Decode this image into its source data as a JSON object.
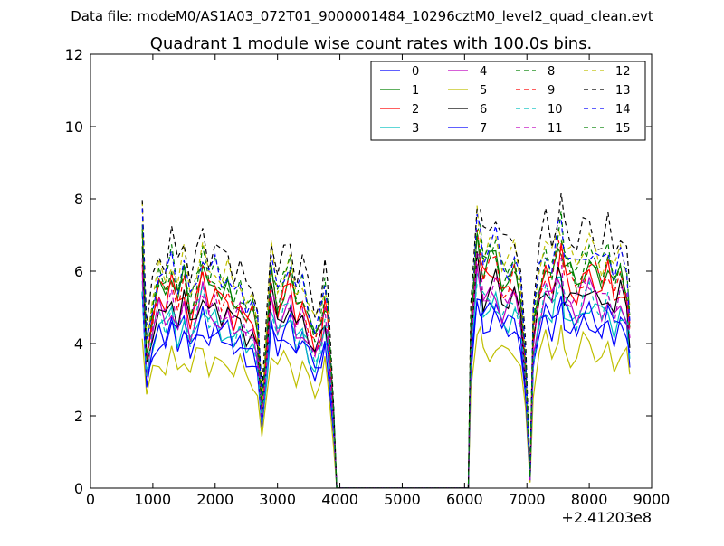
{
  "chart_data": {
    "type": "line",
    "suptitle": "Data file: modeM0/AS1A03_072T01_9000001484_10296cztM0_level2_quad_clean.evt",
    "title": "Quadrant 1 module wise count rates with 100.0s bins.",
    "xlabel": "",
    "ylabel": "",
    "x_offset_label": "+2.41203e8",
    "xlim": [
      0,
      9000
    ],
    "ylim": [
      0,
      12
    ],
    "xticks": [
      0,
      1000,
      2000,
      3000,
      4000,
      5000,
      6000,
      7000,
      8000,
      9000
    ],
    "yticks": [
      0,
      2,
      4,
      6,
      8,
      10,
      12
    ],
    "grid": false,
    "legend_position": "top-right",
    "legend_columns": 4,
    "shape": {
      "segments": [
        {
          "x": [
            830,
            900,
            1000,
            1100,
            1200,
            1300,
            1400,
            1500,
            1600,
            1700,
            1800,
            1900,
            2000,
            2100,
            2200,
            2300,
            2400,
            2500,
            2600,
            2680
          ],
          "r": [
            1.05,
            0.57,
            0.74,
            0.85,
            0.8,
            0.9,
            0.78,
            0.88,
            0.74,
            0.83,
            0.93,
            0.82,
            0.86,
            0.8,
            0.83,
            0.75,
            0.8,
            0.72,
            0.73,
            0.64
          ]
        },
        {
          "x": [
            2750
          ],
          "r": [
            0.32
          ]
        },
        {
          "x": [
            2830,
            2900,
            3000,
            3100,
            3200,
            3300,
            3400,
            3500,
            3600,
            3700,
            3760,
            3800,
            3900
          ],
          "r": [
            0.62,
            0.9,
            0.77,
            0.84,
            0.88,
            0.74,
            0.8,
            0.7,
            0.62,
            0.7,
            0.8,
            0.73,
            0.3
          ]
        },
        {
          "x": [
            3950,
            6060
          ],
          "r": [
            0,
            0
          ]
        },
        {
          "x": [
            6100,
            6200,
            6250,
            6300,
            6400,
            6500,
            6600,
            6700,
            6800,
            6900
          ],
          "r": [
            0.65,
            1.05,
            1.0,
            0.9,
            0.93,
            0.96,
            0.86,
            0.87,
            0.91,
            0.8
          ]
        },
        {
          "x": [
            6980,
            7050,
            7100
          ],
          "r": [
            0.5,
            0.04,
            0.65
          ]
        },
        {
          "x": [
            7200,
            7300,
            7400,
            7500,
            7550,
            7600,
            7700,
            7800,
            7900,
            8000,
            8100,
            8200,
            8300,
            8400,
            8500,
            8600,
            8650
          ],
          "r": [
            0.85,
            0.95,
            0.88,
            1.0,
            1.03,
            0.92,
            0.88,
            0.85,
            0.92,
            0.95,
            0.9,
            0.86,
            0.93,
            0.82,
            0.9,
            0.84,
            0.7
          ]
        }
      ]
    },
    "series": [
      {
        "name": "0",
        "color": "#0000ff",
        "dash": "solid",
        "level": 5.0
      },
      {
        "name": "1",
        "color": "#008000",
        "dash": "solid",
        "level": 6.6
      },
      {
        "name": "2",
        "color": "#ff0000",
        "dash": "solid",
        "level": 6.3
      },
      {
        "name": "3",
        "color": "#00bfbf",
        "dash": "solid",
        "level": 5.4
      },
      {
        "name": "4",
        "color": "#bf00bf",
        "dash": "solid",
        "level": 5.7
      },
      {
        "name": "5",
        "color": "#bfbf00",
        "dash": "solid",
        "level": 4.2
      },
      {
        "name": "6",
        "color": "#000000",
        "dash": "solid",
        "level": 5.9
      },
      {
        "name": "7",
        "color": "#0000ff",
        "dash": "solid",
        "level": 5.2
      },
      {
        "name": "8",
        "color": "#008000",
        "dash": "dashed",
        "level": 7.0
      },
      {
        "name": "9",
        "color": "#ff0000",
        "dash": "dashed",
        "level": 6.5
      },
      {
        "name": "10",
        "color": "#00bfbf",
        "dash": "dashed",
        "level": 5.6
      },
      {
        "name": "11",
        "color": "#bf00bf",
        "dash": "dashed",
        "level": 6.0
      },
      {
        "name": "12",
        "color": "#bfbf00",
        "dash": "dashed",
        "level": 7.2
      },
      {
        "name": "13",
        "color": "#000000",
        "dash": "dashed",
        "level": 7.8
      },
      {
        "name": "14",
        "color": "#0000ff",
        "dash": "dashed",
        "level": 7.1
      },
      {
        "name": "15",
        "color": "#008000",
        "dash": "dashed",
        "level": 6.8
      }
    ]
  }
}
